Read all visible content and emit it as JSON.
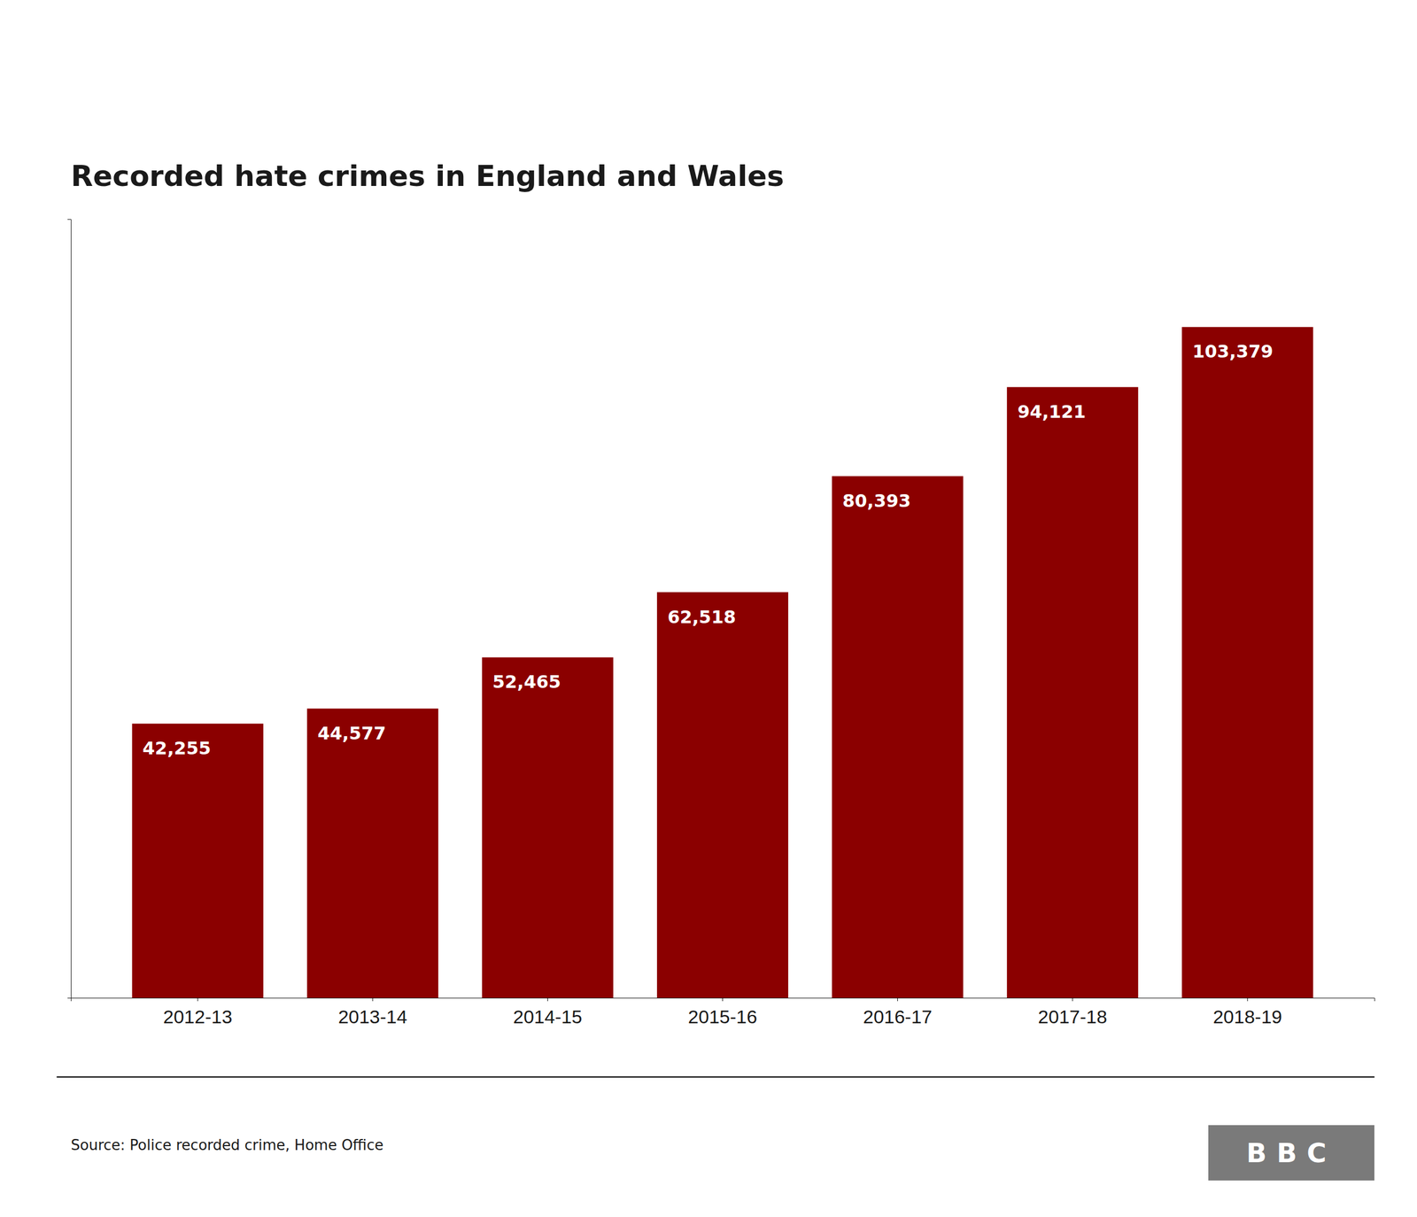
{
  "chart_data": {
    "type": "bar",
    "title": "Recorded hate crimes in England and Wales",
    "categories": [
      "2012-13",
      "2013-14",
      "2014-15",
      "2015-16",
      "2016-17",
      "2017-18",
      "2018-19"
    ],
    "values": [
      42255,
      44577,
      52465,
      62518,
      80393,
      94121,
      103379
    ],
    "value_labels": [
      "42,255",
      "44,577",
      "52,465",
      "62,518",
      "80,393",
      "94,121",
      "103,379"
    ],
    "data_labels": true,
    "color": "#8B0000",
    "ylim": [
      0,
      120000
    ],
    "tick_labels": "x",
    "grid": false,
    "annotations": [
      "Source: Police recorded crime, Home Office",
      "BBC"
    ]
  }
}
